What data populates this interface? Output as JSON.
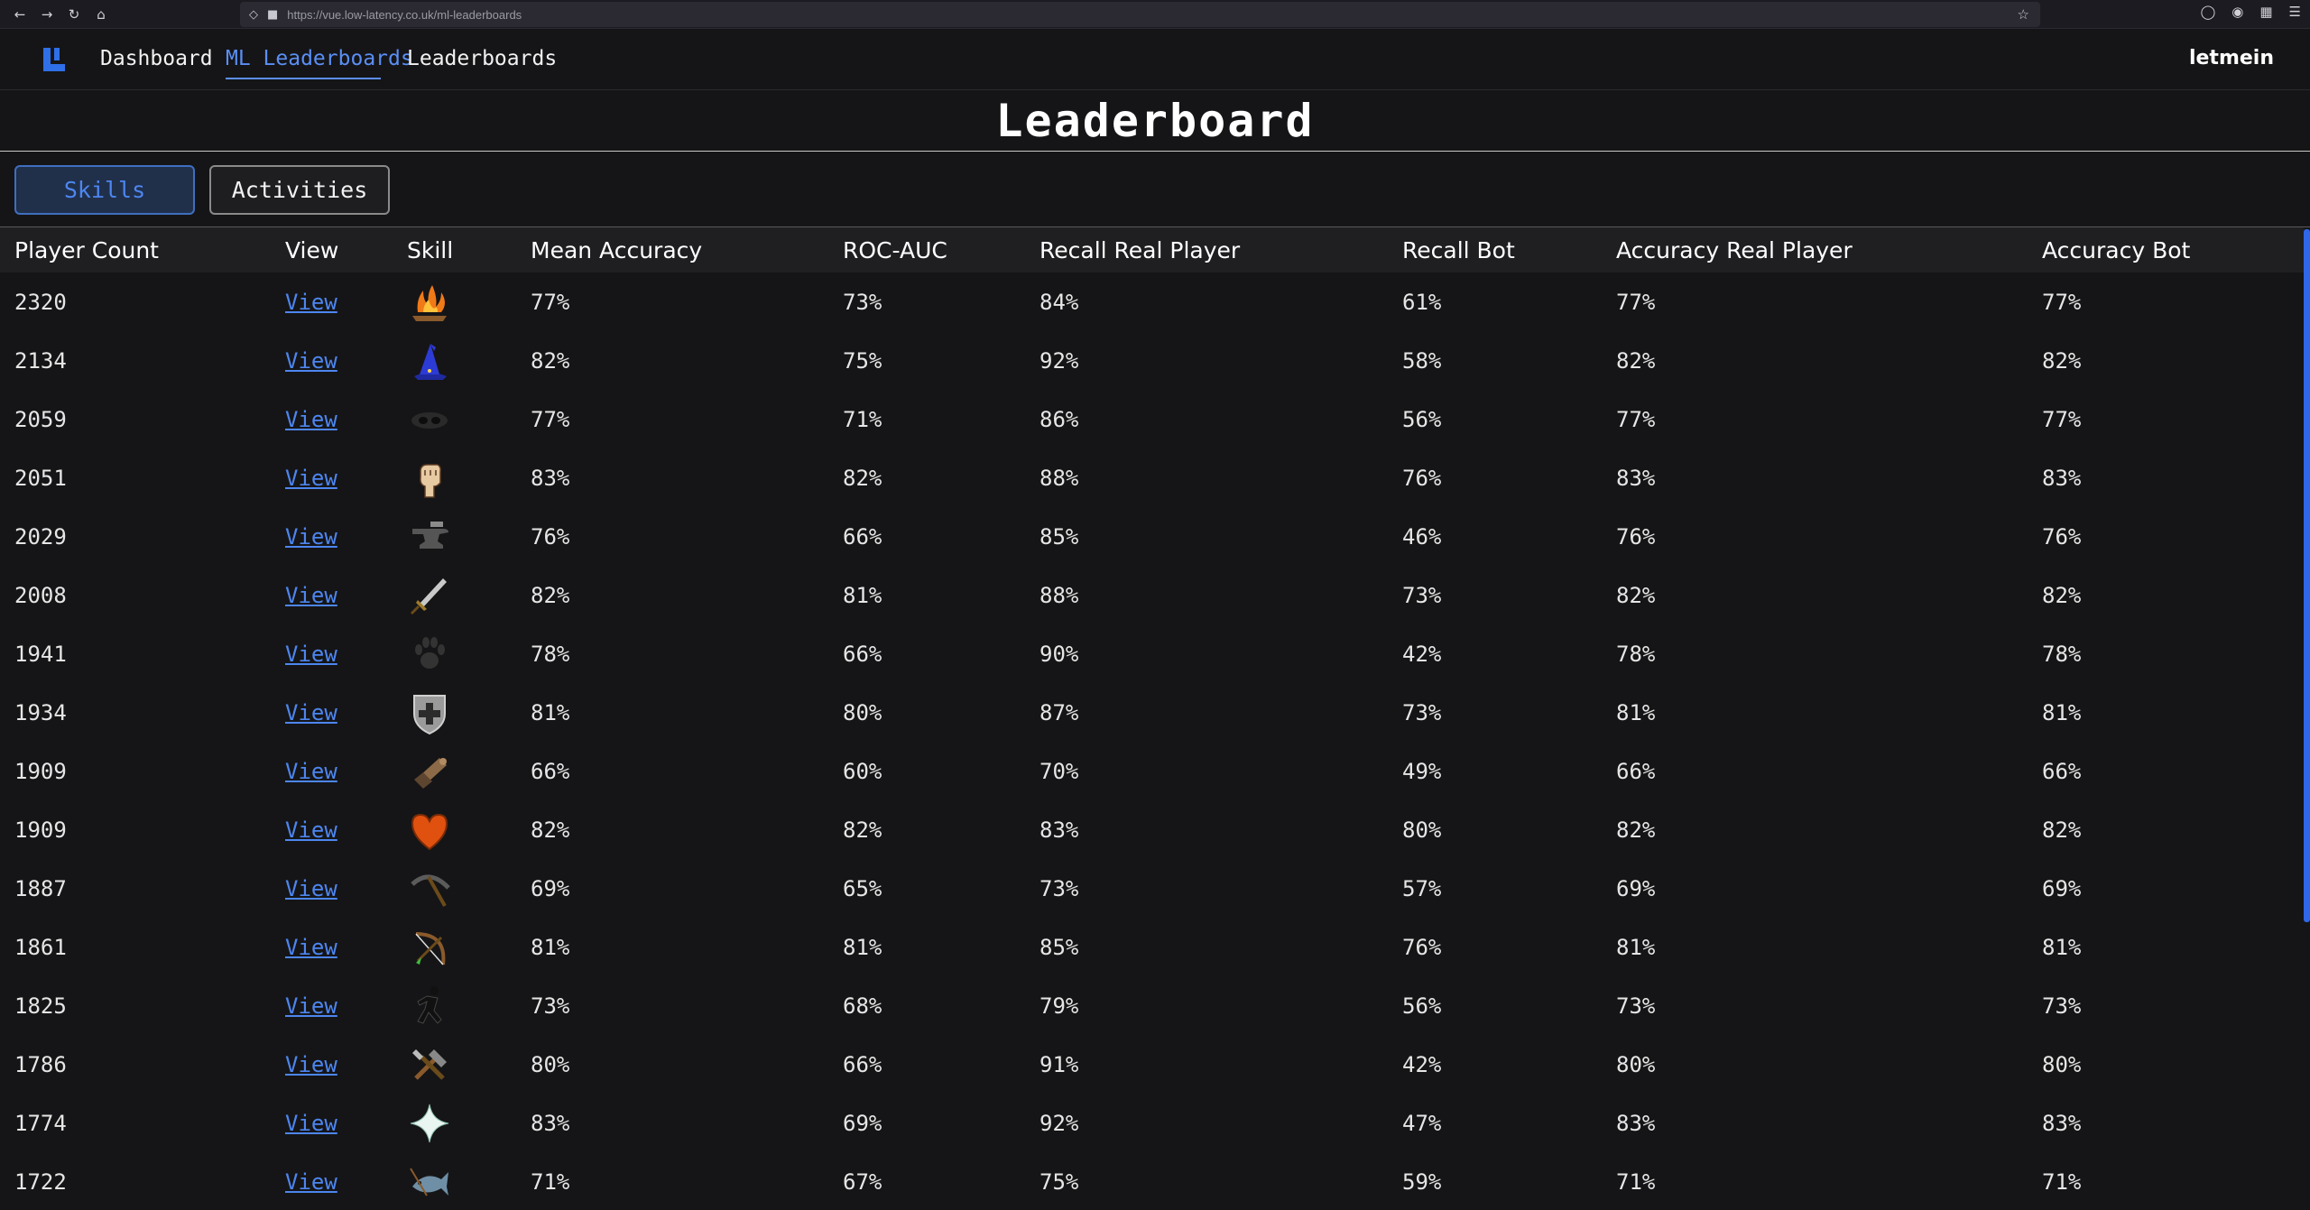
{
  "browser": {
    "url": "https://vue.low-latency.co.uk/ml-leaderboards",
    "icons": [
      "back-icon",
      "forward-icon",
      "reload-icon",
      "home-icon",
      "shield-icon",
      "lock-icon",
      "star-icon",
      "pocket-icon",
      "account-icon",
      "extensions-icon",
      "menu-icon"
    ]
  },
  "nav": {
    "items": [
      {
        "label": "Dashboard"
      },
      {
        "label": "ML Leaderboards",
        "active": true
      },
      {
        "label": "Leaderboards"
      }
    ],
    "user": "letmein"
  },
  "page": {
    "title": "Leaderboard",
    "tabs": [
      {
        "label": "Skills",
        "active": true
      },
      {
        "label": "Activities"
      }
    ]
  },
  "colors": {
    "accent": "#4d86f0",
    "background": "#151517",
    "header_row": "#1f1f22"
  },
  "table": {
    "columns": [
      "Player Count",
      "View",
      "Skill",
      "Mean Accuracy",
      "ROC-AUC",
      "Recall Real Player",
      "Recall Bot",
      "Accuracy Real Player",
      "Accuracy Bot"
    ],
    "rows": [
      {
        "player_count": "2320",
        "view": "View",
        "skill": "firemaking-icon",
        "mean_accuracy": "77%",
        "roc_auc": "73%",
        "recall_real": "84%",
        "recall_bot": "61%",
        "acc_real": "77%",
        "acc_bot": "77%"
      },
      {
        "player_count": "2134",
        "view": "View",
        "skill": "magic-icon",
        "mean_accuracy": "82%",
        "roc_auc": "75%",
        "recall_real": "92%",
        "recall_bot": "58%",
        "acc_real": "82%",
        "acc_bot": "82%"
      },
      {
        "player_count": "2059",
        "view": "View",
        "skill": "thieving-icon",
        "mean_accuracy": "77%",
        "roc_auc": "71%",
        "recall_real": "86%",
        "recall_bot": "56%",
        "acc_real": "77%",
        "acc_bot": "77%"
      },
      {
        "player_count": "2051",
        "view": "View",
        "skill": "strength-icon",
        "mean_accuracy": "83%",
        "roc_auc": "82%",
        "recall_real": "88%",
        "recall_bot": "76%",
        "acc_real": "83%",
        "acc_bot": "83%"
      },
      {
        "player_count": "2029",
        "view": "View",
        "skill": "smithing-icon",
        "mean_accuracy": "76%",
        "roc_auc": "66%",
        "recall_real": "85%",
        "recall_bot": "46%",
        "acc_real": "76%",
        "acc_bot": "76%"
      },
      {
        "player_count": "2008",
        "view": "View",
        "skill": "attack-icon",
        "mean_accuracy": "82%",
        "roc_auc": "81%",
        "recall_real": "88%",
        "recall_bot": "73%",
        "acc_real": "82%",
        "acc_bot": "82%"
      },
      {
        "player_count": "1941",
        "view": "View",
        "skill": "hunter-icon",
        "mean_accuracy": "78%",
        "roc_auc": "66%",
        "recall_real": "90%",
        "recall_bot": "42%",
        "acc_real": "78%",
        "acc_bot": "78%"
      },
      {
        "player_count": "1934",
        "view": "View",
        "skill": "defence-icon",
        "mean_accuracy": "81%",
        "roc_auc": "80%",
        "recall_real": "87%",
        "recall_bot": "73%",
        "acc_real": "81%",
        "acc_bot": "81%"
      },
      {
        "player_count": "1909",
        "view": "View",
        "skill": "construction-icon",
        "mean_accuracy": "66%",
        "roc_auc": "60%",
        "recall_real": "70%",
        "recall_bot": "49%",
        "acc_real": "66%",
        "acc_bot": "66%"
      },
      {
        "player_count": "1909",
        "view": "View",
        "skill": "hitpoints-icon",
        "mean_accuracy": "82%",
        "roc_auc": "82%",
        "recall_real": "83%",
        "recall_bot": "80%",
        "acc_real": "82%",
        "acc_bot": "82%"
      },
      {
        "player_count": "1887",
        "view": "View",
        "skill": "mining-icon",
        "mean_accuracy": "69%",
        "roc_auc": "65%",
        "recall_real": "73%",
        "recall_bot": "57%",
        "acc_real": "69%",
        "acc_bot": "69%"
      },
      {
        "player_count": "1861",
        "view": "View",
        "skill": "fletching-icon",
        "mean_accuracy": "81%",
        "roc_auc": "81%",
        "recall_real": "85%",
        "recall_bot": "76%",
        "acc_real": "81%",
        "acc_bot": "81%"
      },
      {
        "player_count": "1825",
        "view": "View",
        "skill": "agility-icon",
        "mean_accuracy": "73%",
        "roc_auc": "68%",
        "recall_real": "79%",
        "recall_bot": "56%",
        "acc_real": "73%",
        "acc_bot": "73%"
      },
      {
        "player_count": "1786",
        "view": "View",
        "skill": "crafting-icon",
        "mean_accuracy": "80%",
        "roc_auc": "66%",
        "recall_real": "91%",
        "recall_bot": "42%",
        "acc_real": "80%",
        "acc_bot": "80%"
      },
      {
        "player_count": "1774",
        "view": "View",
        "skill": "prayer-icon",
        "mean_accuracy": "83%",
        "roc_auc": "69%",
        "recall_real": "92%",
        "recall_bot": "47%",
        "acc_real": "83%",
        "acc_bot": "83%"
      },
      {
        "player_count": "1722",
        "view": "View",
        "skill": "fishing-icon",
        "mean_accuracy": "71%",
        "roc_auc": "67%",
        "recall_real": "75%",
        "recall_bot": "59%",
        "acc_real": "71%",
        "acc_bot": "71%"
      }
    ]
  }
}
